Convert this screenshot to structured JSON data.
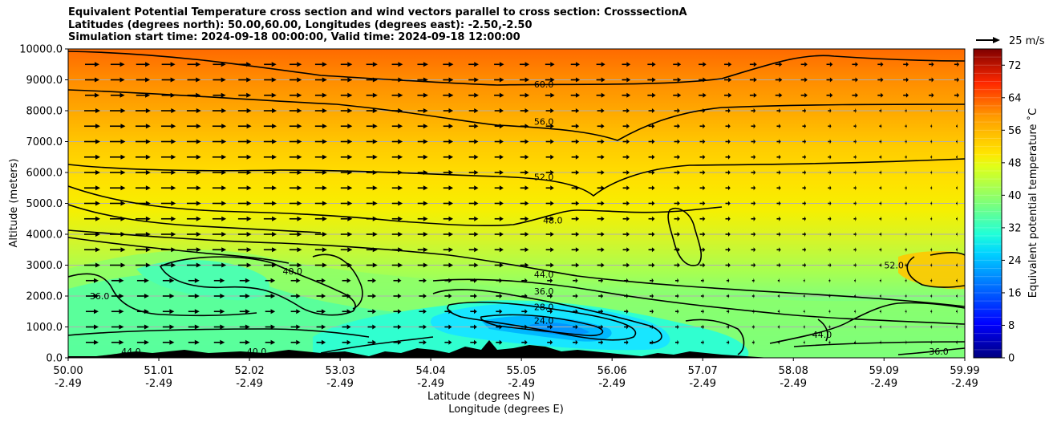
{
  "title_lines": [
    "Equivalent Potential Temperature cross section and wind vectors parallel to cross section: CrosssectionA",
    "Latitudes (degrees north): 50.00,60.00, Longitudes (degrees east): -2.50,-2.50",
    "Simulation start time: 2024-09-18 00:00:00, Valid time: 2024-09-18 12:00:00"
  ],
  "chart_data": {
    "type": "heatmap",
    "xlabel_lines": [
      "Latitude (degrees N)",
      "Longitude (degrees E)"
    ],
    "ylabel": "Altitude (meters)",
    "x_ticks": [
      {
        "lat": "50.00",
        "lon": "-2.49",
        "value": 50.0
      },
      {
        "lat": "51.01",
        "lon": "-2.49",
        "value": 51.01
      },
      {
        "lat": "52.02",
        "lon": "-2.49",
        "value": 52.02
      },
      {
        "lat": "53.03",
        "lon": "-2.49",
        "value": 53.03
      },
      {
        "lat": "54.04",
        "lon": "-2.49",
        "value": 54.04
      },
      {
        "lat": "55.05",
        "lon": "-2.49",
        "value": 55.05
      },
      {
        "lat": "56.06",
        "lon": "-2.49",
        "value": 56.06
      },
      {
        "lat": "57.07",
        "lon": "-2.49",
        "value": 57.07
      },
      {
        "lat": "58.08",
        "lon": "-2.49",
        "value": 58.08
      },
      {
        "lat": "59.09",
        "lon": "-2.49",
        "value": 59.09
      },
      {
        "lat": "59.99",
        "lon": "-2.49",
        "value": 59.99
      }
    ],
    "xlim": [
      50.0,
      59.99
    ],
    "y_ticks": [
      "0.0",
      "1000.0",
      "2000.0",
      "3000.0",
      "4000.0",
      "5000.0",
      "6000.0",
      "7000.0",
      "8000.0",
      "9000.0",
      "10000.0"
    ],
    "ylim": [
      0,
      10000
    ],
    "grid": "horizontal",
    "colorbar": {
      "label": "Equivalent potential temperature ˚C",
      "ticks": [
        "0",
        "8",
        "16",
        "24",
        "32",
        "40",
        "48",
        "56",
        "64",
        "72"
      ],
      "range": [
        0,
        76
      ],
      "colormap": "jet"
    },
    "quiver_key": "25 m/s",
    "contour_labels": [
      {
        "text": "60.0",
        "lat": 55.3,
        "alt": 8750
      },
      {
        "text": "56.0",
        "lat": 55.3,
        "alt": 7550
      },
      {
        "text": "52.0",
        "lat": 55.3,
        "alt": 5750
      },
      {
        "text": "48.0",
        "lat": 55.4,
        "alt": 4350
      },
      {
        "text": "44.0",
        "lat": 55.3,
        "alt": 2600
      },
      {
        "text": "40.0",
        "lat": 52.5,
        "alt": 2700
      },
      {
        "text": "36.0",
        "lat": 55.3,
        "alt": 2050
      },
      {
        "text": "28.0",
        "lat": 55.3,
        "alt": 1550
      },
      {
        "text": "24.0",
        "lat": 55.3,
        "alt": 1100
      },
      {
        "text": "52.0",
        "lat": 59.2,
        "alt": 2900
      },
      {
        "text": "44.0",
        "lat": 58.4,
        "alt": 650
      },
      {
        "text": "36.0",
        "lat": 59.7,
        "alt": 100
      },
      {
        "text": "36.0",
        "lat": 50.35,
        "alt": 1900
      },
      {
        "text": "44.0",
        "lat": 50.7,
        "alt": 100
      },
      {
        "text": "40.0",
        "lat": 52.1,
        "alt": 100
      }
    ]
  }
}
